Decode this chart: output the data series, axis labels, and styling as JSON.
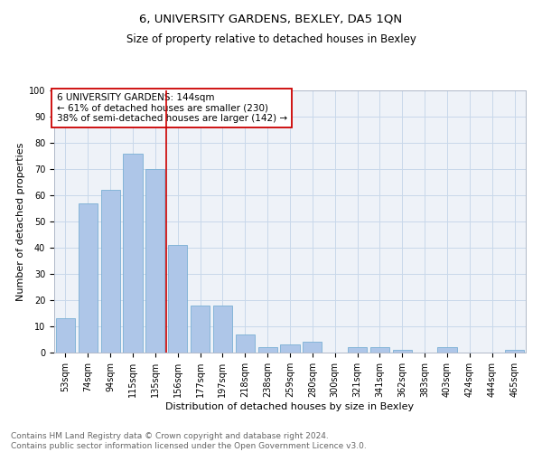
{
  "title1": "6, UNIVERSITY GARDENS, BEXLEY, DA5 1QN",
  "title2": "Size of property relative to detached houses in Bexley",
  "xlabel": "Distribution of detached houses by size in Bexley",
  "ylabel": "Number of detached properties",
  "categories": [
    "53sqm",
    "74sqm",
    "94sqm",
    "115sqm",
    "135sqm",
    "156sqm",
    "177sqm",
    "197sqm",
    "218sqm",
    "238sqm",
    "259sqm",
    "280sqm",
    "300sqm",
    "321sqm",
    "341sqm",
    "362sqm",
    "383sqm",
    "403sqm",
    "424sqm",
    "444sqm",
    "465sqm"
  ],
  "values": [
    13,
    57,
    62,
    76,
    70,
    41,
    18,
    18,
    7,
    2,
    3,
    4,
    0,
    2,
    2,
    1,
    0,
    2,
    0,
    0,
    1
  ],
  "bar_color": "#aec6e8",
  "bar_edge_color": "#7aafd4",
  "annotation_text": "6 UNIVERSITY GARDENS: 144sqm\n← 61% of detached houses are smaller (230)\n38% of semi-detached houses are larger (142) →",
  "annotation_box_color": "#ffffff",
  "annotation_box_edge_color": "#cc0000",
  "vline_x": 4.5,
  "vline_color": "#cc0000",
  "ylim": [
    0,
    100
  ],
  "xlim": [
    -0.5,
    20.5
  ],
  "grid_color": "#c8d8ea",
  "background_color": "#eef2f8",
  "footer": "Contains HM Land Registry data © Crown copyright and database right 2024.\nContains public sector information licensed under the Open Government Licence v3.0.",
  "title1_fontsize": 9.5,
  "title2_fontsize": 8.5,
  "ylabel_fontsize": 8,
  "xlabel_fontsize": 8,
  "tick_fontsize": 7,
  "annotation_fontsize": 7.5,
  "footer_fontsize": 6.5
}
